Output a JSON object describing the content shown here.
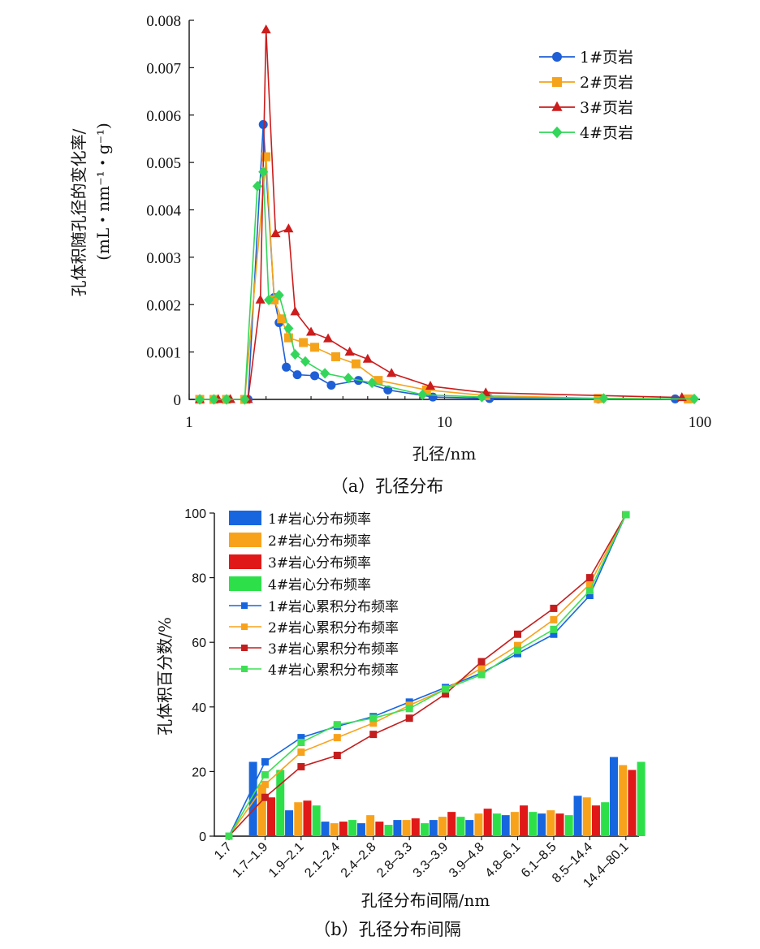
{
  "chart_data": [
    {
      "type": "line",
      "xscale": "log",
      "xlim": [
        1,
        100
      ],
      "ylim": [
        0,
        0.008
      ],
      "x_ticks": [
        "1",
        "10",
        "100"
      ],
      "y_ticks": [
        "0",
        "0.001",
        "0.002",
        "0.003",
        "0.004",
        "0.005",
        "0.006",
        "0.007",
        "0.008"
      ],
      "xlabel": "孔径/nm",
      "ylabel": "孔体积随孔径的变化率/",
      "ylabel_units": "(mL・nm⁻¹・g⁻¹)",
      "caption": "（a）孔径分布",
      "series": [
        {
          "name": "1#页岩",
          "color": "#1f5fd6",
          "marker": "circle",
          "x": [
            1.1,
            1.25,
            1.4,
            1.7,
            1.95,
            2.15,
            2.25,
            2.4,
            2.65,
            3.1,
            3.6,
            4.6,
            6.0,
            9.0,
            15,
            40,
            80
          ],
          "y": [
            0.0,
            0.0,
            0.0,
            0.0,
            0.0058,
            0.00215,
            0.00162,
            0.00068,
            0.00052,
            0.0005,
            0.0003,
            0.0004,
            0.0002,
            5e-05,
            2e-05,
            1e-05,
            1e-05
          ]
        },
        {
          "name": "2#页岩",
          "color": "#f5a31a",
          "marker": "square",
          "x": [
            1.1,
            1.25,
            1.4,
            1.65,
            2.0,
            2.15,
            2.3,
            2.45,
            2.8,
            3.1,
            3.75,
            4.5,
            5.5,
            8.5,
            14.5,
            40,
            90
          ],
          "y": [
            0.0,
            0.0,
            0.0,
            0.0,
            0.00512,
            0.0021,
            0.0017,
            0.0013,
            0.0012,
            0.0011,
            0.0009,
            0.00075,
            0.0004,
            0.0002,
            8e-05,
            2e-05,
            1e-05
          ]
        },
        {
          "name": "3#页岩",
          "color": "#cc1c1c",
          "marker": "triangle",
          "x": [
            1.1,
            1.3,
            1.45,
            1.7,
            1.9,
            2.0,
            2.18,
            2.45,
            2.6,
            3.0,
            3.5,
            4.25,
            5.0,
            6.2,
            8.8,
            14.5,
            85
          ],
          "y": [
            0.0,
            0.0,
            0.0,
            0.0,
            0.0021,
            0.0078,
            0.0035,
            0.0036,
            0.00185,
            0.00142,
            0.00128,
            0.001,
            0.00085,
            0.00055,
            0.00028,
            0.00014,
            4e-05
          ]
        },
        {
          "name": "4#页岩",
          "color": "#33d65a",
          "marker": "diamond",
          "x": [
            1.1,
            1.25,
            1.4,
            1.65,
            1.85,
            1.95,
            2.05,
            2.25,
            2.45,
            2.6,
            2.85,
            3.4,
            4.2,
            5.2,
            8.2,
            14,
            42,
            95
          ],
          "y": [
            0.0,
            0.0,
            0.0,
            0.0,
            0.0045,
            0.0048,
            0.0021,
            0.0022,
            0.0015,
            0.00095,
            0.0008,
            0.00055,
            0.00045,
            0.00035,
            0.0001,
            5e-05,
            2e-05,
            1e-05
          ]
        }
      ]
    },
    {
      "type": "bar",
      "categories": [
        "1.7",
        "1.7–1.9",
        "1.9–2.1",
        "2.1–2.4",
        "2.4–2.8",
        "2.8–3.3",
        "3.3–3.9",
        "3.9–4.8",
        "4.8–6.1",
        "6.1–8.5",
        "8.5–14.4",
        "14.4–80.1"
      ],
      "ylim": [
        0,
        100
      ],
      "y_ticks": [
        "0",
        "20",
        "40",
        "60",
        "80",
        "100"
      ],
      "xlabel": "孔径分布间隔/nm",
      "ylabel": "孔体积百分数/%",
      "caption": "（b）孔径分布间隔",
      "series": [
        {
          "name": "1#岩心分布频率",
          "color": "#1766e0",
          "values": [
            0,
            23,
            8,
            4.5,
            4,
            5,
            5,
            5,
            6.5,
            7,
            12.5,
            24.5
          ]
        },
        {
          "name": "2#岩心分布频率",
          "color": "#f8a21c",
          "values": [
            0,
            16,
            10.5,
            4,
            6.5,
            5,
            6,
            7,
            7.5,
            8,
            12,
            22
          ]
        },
        {
          "name": "3#岩心分布频率",
          "color": "#e01818",
          "values": [
            0,
            12,
            11,
            4.5,
            4.5,
            5.5,
            7.5,
            8.5,
            9.5,
            7,
            9.5,
            20.5
          ]
        },
        {
          "name": "4#岩心分布频率",
          "color": "#2de04a",
          "values": [
            0,
            20.5,
            9.5,
            5,
            3.5,
            4,
            6,
            7,
            7.5,
            6.5,
            10.5,
            23
          ]
        }
      ],
      "cumulative_series": [
        {
          "name": "1#岩心累积分布频率",
          "color": "#1766e0",
          "values": [
            0,
            23,
            30.5,
            34,
            37,
            41.5,
            46,
            50.5,
            56.5,
            62.5,
            74.5,
            99.5
          ]
        },
        {
          "name": "2#岩心累积分布频率",
          "color": "#f8a21c",
          "values": [
            0,
            16,
            26,
            30.5,
            35,
            40.5,
            45.5,
            52,
            59,
            67,
            78,
            99.5
          ]
        },
        {
          "name": "3#岩心累积分布频率",
          "color": "#c41e1e",
          "values": [
            0,
            12,
            21.5,
            25,
            31.5,
            36.5,
            44,
            54,
            62.5,
            70.5,
            80,
            99.5
          ]
        },
        {
          "name": "4#岩心累积分布频率",
          "color": "#3ee053",
          "values": [
            0,
            19,
            29,
            34.5,
            36.5,
            39.5,
            45.5,
            50,
            57.5,
            64,
            76,
            99.5
          ]
        }
      ]
    }
  ]
}
